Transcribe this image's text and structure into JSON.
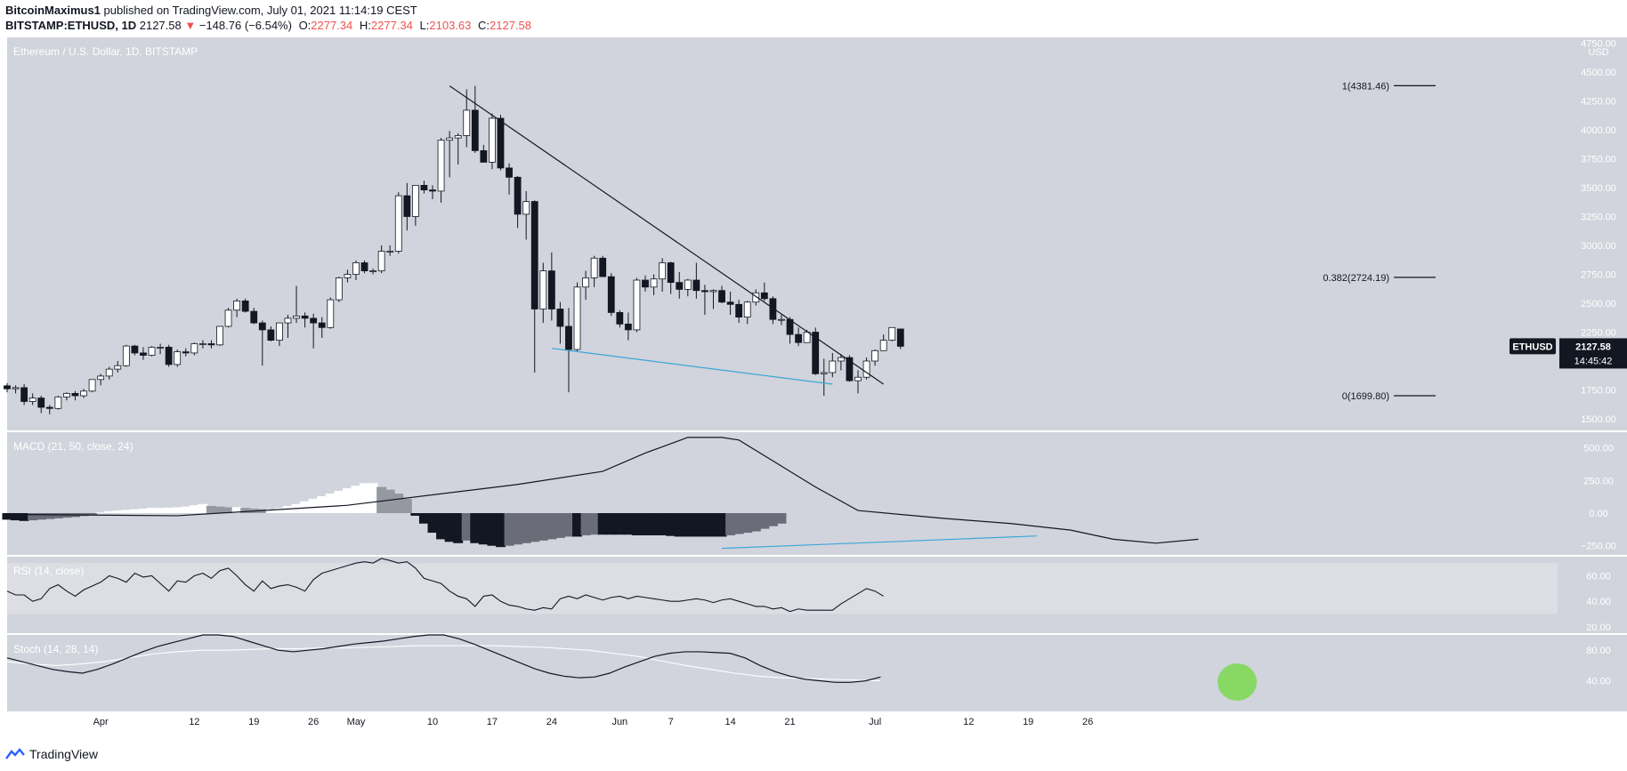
{
  "header": {
    "author": "BitcoinMaximus1",
    "published_text": "published on TradingView.com, July 01, 2021 11:14:19 CEST",
    "symbol": "BITSTAMP:ETHUSD, 1D",
    "last": "2127.58",
    "change": "−148.76 (−6.54%)",
    "o_label": "O:",
    "o": "2277.34",
    "h_label": "H:",
    "h": "2277.34",
    "l_label": "L:",
    "l": "2103.63",
    "c_label": "C:",
    "c": "2127.58"
  },
  "main": {
    "title": "Ethereum / U.S. Dollar, 1D, BITSTAMP",
    "currency": "USD",
    "price_ticks": [
      "4750.00",
      "4500.00",
      "4250.00",
      "4000.00",
      "3750.00",
      "3500.00",
      "3250.00",
      "3000.00",
      "2750.00",
      "2500.00",
      "2250.00",
      "2000.00",
      "1750.00",
      "1500.00"
    ],
    "fib_levels": [
      {
        "label": "1(4381.46)",
        "value": 4381.46
      },
      {
        "label": "0.382(2724.19)",
        "value": 2724.19
      },
      {
        "label": "0(1699.80)",
        "value": 1699.8
      }
    ],
    "price_badge": {
      "symbol": "ETHUSD",
      "price": "2127.58",
      "countdown": "14:45:42"
    }
  },
  "macd": {
    "title": "MACD (21, 50, close, 24)",
    "ticks": [
      "500.00",
      "250.00",
      "0.00",
      "−250.00"
    ]
  },
  "rsi": {
    "title": "RSI (14, close)",
    "ticks": [
      "60.00",
      "40.00",
      "20.00"
    ]
  },
  "stoch": {
    "title": "Stoch (14, 28, 14)",
    "ticks": [
      "80.00",
      "40.00"
    ]
  },
  "x_axis": {
    "ticks": [
      "Apr",
      "12",
      "19",
      "26",
      "May",
      "10",
      "17",
      "24",
      "Jun",
      "7",
      "14",
      "21",
      "Jul",
      "12",
      "19",
      "26"
    ]
  },
  "footer": {
    "brand": "TradingView"
  },
  "colors": {
    "bg": "#d1d4dc",
    "up": "#ffffff",
    "down": "#131722",
    "wick": "#131722",
    "support": "#3ca5d8",
    "highlight": "#7ed957",
    "label_red": "#ef5350"
  },
  "chart_data": [
    {
      "type": "candlestick",
      "title": "Ethereum / U.S. Dollar, 1D, BITSTAMP",
      "x_start": "2021-03-21",
      "x_end": "2021-07-01",
      "ylim": [
        1400,
        4800
      ],
      "ohlc": [
        [
          1786,
          1810,
          1730,
          1760
        ],
        [
          1760,
          1790,
          1720,
          1770
        ],
        [
          1770,
          1800,
          1620,
          1650
        ],
        [
          1650,
          1720,
          1620,
          1680
        ],
        [
          1680,
          1700,
          1550,
          1600
        ],
        [
          1600,
          1620,
          1540,
          1590
        ],
        [
          1590,
          1700,
          1580,
          1690
        ],
        [
          1690,
          1730,
          1660,
          1720
        ],
        [
          1720,
          1740,
          1660,
          1700
        ],
        [
          1700,
          1760,
          1680,
          1740
        ],
        [
          1740,
          1840,
          1730,
          1840
        ],
        [
          1840,
          1890,
          1790,
          1870
        ],
        [
          1870,
          1950,
          1840,
          1930
        ],
        [
          1930,
          2000,
          1900,
          1960
        ],
        [
          1960,
          2140,
          1950,
          2130
        ],
        [
          2130,
          2140,
          2050,
          2070
        ],
        [
          2070,
          2120,
          2010,
          2050
        ],
        [
          2050,
          2130,
          2040,
          2120
        ],
        [
          2120,
          2150,
          2060,
          2120
        ],
        [
          2120,
          2140,
          1950,
          1970
        ],
        [
          1970,
          2100,
          1950,
          2080
        ],
        [
          2080,
          2110,
          2040,
          2070
        ],
        [
          2070,
          2160,
          2050,
          2150
        ],
        [
          2150,
          2180,
          2110,
          2150
        ],
        [
          2150,
          2180,
          2110,
          2140
        ],
        [
          2140,
          2300,
          2130,
          2300
        ],
        [
          2300,
          2460,
          2290,
          2440
        ],
        [
          2440,
          2540,
          2380,
          2520
        ],
        [
          2520,
          2540,
          2420,
          2430
        ],
        [
          2430,
          2460,
          2320,
          2330
        ],
        [
          2330,
          2350,
          1960,
          2270
        ],
        [
          2270,
          2300,
          2170,
          2180
        ],
        [
          2180,
          2310,
          2130,
          2330
        ],
        [
          2330,
          2400,
          2200,
          2370
        ],
        [
          2370,
          2650,
          2330,
          2390
        ],
        [
          2390,
          2420,
          2290,
          2370
        ],
        [
          2370,
          2410,
          2110,
          2330
        ],
        [
          2330,
          2380,
          2200,
          2290
        ],
        [
          2290,
          2550,
          2280,
          2530
        ],
        [
          2530,
          2730,
          2510,
          2720
        ],
        [
          2720,
          2790,
          2680,
          2750
        ],
        [
          2750,
          2870,
          2700,
          2850
        ],
        [
          2850,
          2870,
          2760,
          2780
        ],
        [
          2780,
          2800,
          2750,
          2780
        ],
        [
          2780,
          3000,
          2760,
          2950
        ],
        [
          2950,
          3000,
          2910,
          2950
        ],
        [
          2950,
          3460,
          2930,
          3430
        ],
        [
          3430,
          3540,
          3130,
          3250
        ],
        [
          3250,
          3500,
          3170,
          3520
        ],
        [
          3520,
          3560,
          3450,
          3480
        ],
        [
          3480,
          3520,
          3400,
          3470
        ],
        [
          3470,
          3930,
          3370,
          3910
        ],
        [
          3910,
          3990,
          3590,
          3930
        ],
        [
          3930,
          3970,
          3700,
          3950
        ],
        [
          3950,
          4350,
          3850,
          4170
        ],
        [
          4170,
          4380,
          3800,
          3820
        ],
        [
          3820,
          3870,
          3720,
          3720
        ],
        [
          3720,
          4140,
          3660,
          4100
        ],
        [
          4100,
          4130,
          3650,
          3670
        ],
        [
          3670,
          3710,
          3440,
          3590
        ],
        [
          3590,
          3600,
          3150,
          3270
        ],
        [
          3270,
          3470,
          3050,
          3380
        ],
        [
          3380,
          3390,
          1900,
          2450
        ],
        [
          2450,
          2850,
          2330,
          2780
        ],
        [
          2780,
          2940,
          2350,
          2450
        ],
        [
          2450,
          2510,
          2150,
          2300
        ],
        [
          2300,
          2460,
          1730,
          2100
        ],
        [
          2100,
          2680,
          2080,
          2640
        ],
        [
          2640,
          2780,
          2530,
          2720
        ],
        [
          2720,
          2910,
          2640,
          2890
        ],
        [
          2890,
          2910,
          2730,
          2730
        ],
        [
          2730,
          2760,
          2390,
          2420
        ],
        [
          2420,
          2440,
          2290,
          2320
        ],
        [
          2320,
          2420,
          2180,
          2270
        ],
        [
          2270,
          2720,
          2250,
          2700
        ],
        [
          2700,
          2740,
          2600,
          2640
        ],
        [
          2640,
          2750,
          2570,
          2710
        ],
        [
          2710,
          2890,
          2600,
          2850
        ],
        [
          2850,
          2860,
          2580,
          2680
        ],
        [
          2680,
          2770,
          2540,
          2620
        ],
        [
          2620,
          2710,
          2560,
          2700
        ],
        [
          2700,
          2850,
          2540,
          2610
        ],
        [
          2610,
          2660,
          2400,
          2600
        ],
        [
          2600,
          2620,
          2450,
          2610
        ],
        [
          2610,
          2650,
          2500,
          2510
        ],
        [
          2510,
          2600,
          2400,
          2490
        ],
        [
          2490,
          2530,
          2330,
          2380
        ],
        [
          2380,
          2520,
          2320,
          2510
        ],
        [
          2510,
          2620,
          2480,
          2590
        ],
        [
          2590,
          2680,
          2520,
          2540
        ],
        [
          2540,
          2560,
          2320,
          2360
        ],
        [
          2360,
          2400,
          2310,
          2360
        ],
        [
          2360,
          2380,
          2150,
          2230
        ],
        [
          2230,
          2290,
          2130,
          2160
        ],
        [
          2160,
          2270,
          2160,
          2250
        ],
        [
          2250,
          2290,
          1880,
          1890
        ],
        [
          1890,
          2020,
          1700,
          1900
        ],
        [
          1900,
          2070,
          1860,
          2000
        ],
        [
          2000,
          2060,
          1920,
          2030
        ],
        [
          2030,
          2050,
          1820,
          1830
        ],
        [
          1830,
          1920,
          1720,
          1860
        ],
        [
          1860,
          2030,
          1840,
          2000
        ],
        [
          2000,
          2100,
          1960,
          2090
        ],
        [
          2090,
          2230,
          2090,
          2180
        ],
        [
          2180,
          2290,
          2170,
          2290
        ],
        [
          2277.34,
          2277.34,
          2103.63,
          2127.58
        ]
      ],
      "trendline": [
        [
          "2021-05-12",
          4380
        ],
        [
          "2021-07-02",
          1800
        ]
      ],
      "support_line": [
        [
          "2021-05-24",
          2110
        ],
        [
          "2021-06-26",
          1800
        ]
      ]
    },
    {
      "type": "bar",
      "title": "MACD (21, 50, close, 24)",
      "ylim": [
        -320,
        620
      ],
      "macd_line": [
        [
          0,
          -10
        ],
        [
          20,
          -20
        ],
        [
          40,
          60
        ],
        [
          55,
          180
        ],
        [
          60,
          220
        ],
        [
          70,
          320
        ],
        [
          75,
          460
        ],
        [
          80,
          580
        ],
        [
          84,
          580
        ],
        [
          86,
          560
        ],
        [
          90,
          400
        ],
        [
          95,
          200
        ],
        [
          100,
          20
        ],
        [
          110,
          -40
        ],
        [
          118,
          -80
        ],
        [
          125,
          -130
        ],
        [
          130,
          -200
        ],
        [
          135,
          -230
        ],
        [
          140,
          -200
        ]
      ],
      "histogram": [
        -50,
        -55,
        -60,
        -55,
        -50,
        -45,
        -40,
        -35,
        -30,
        -22,
        -10,
        5,
        15,
        20,
        25,
        30,
        35,
        40,
        40,
        42,
        45,
        50,
        60,
        70,
        55,
        50,
        45,
        45,
        40,
        35,
        30,
        30,
        40,
        55,
        70,
        90,
        110,
        130,
        150,
        170,
        190,
        210,
        230,
        230,
        200,
        180,
        150,
        110,
        -20,
        -80,
        -150,
        -200,
        -220,
        -230,
        -210,
        -230,
        -240,
        -250,
        -260,
        -250,
        -240,
        -230,
        -220,
        -210,
        -200,
        -190,
        -180,
        -180,
        -170,
        -165,
        -165,
        -165,
        -165,
        -165,
        -170,
        -170,
        -170,
        -170,
        -175,
        -180,
        -180,
        -180,
        -180,
        -180,
        -180,
        -170,
        -160,
        -150,
        -140,
        -120,
        -100,
        -80
      ]
    },
    {
      "type": "line",
      "title": "RSI (14, close)",
      "ylim": [
        15,
        75
      ],
      "values": [
        48,
        45,
        45,
        40,
        42,
        50,
        53,
        48,
        44,
        49,
        52,
        55,
        60,
        58,
        55,
        62,
        59,
        60,
        54,
        48,
        56,
        55,
        60,
        62,
        58,
        64,
        66,
        60,
        53,
        48,
        56,
        50,
        52,
        53,
        51,
        48,
        57,
        62,
        64,
        66,
        68,
        70,
        71,
        70,
        74,
        72,
        70,
        71,
        66,
        58,
        56,
        54,
        48,
        44,
        42,
        36,
        44,
        45,
        40,
        37,
        36,
        34,
        33,
        35,
        34,
        42,
        44,
        42,
        45,
        43,
        41,
        43,
        44,
        42,
        44,
        43,
        42,
        41,
        40,
        40,
        41,
        42,
        41,
        39,
        41,
        42,
        40,
        38,
        36,
        36,
        34,
        35,
        32,
        34,
        33,
        33,
        33,
        33,
        38,
        42,
        46,
        50,
        48,
        44
      ]
    },
    {
      "type": "line",
      "title": "Stoch (14, 28, 14)",
      "ylim": [
        0,
        100
      ],
      "k": [
        70,
        65,
        60,
        55,
        52,
        50,
        55,
        62,
        70,
        78,
        85,
        90,
        95,
        100,
        100,
        98,
        92,
        86,
        80,
        78,
        80,
        82,
        85,
        88,
        90,
        92,
        95,
        98,
        100,
        100,
        95,
        88,
        80,
        72,
        64,
        56,
        50,
        46,
        44,
        45,
        50,
        58,
        65,
        72,
        76,
        78,
        78,
        77,
        76,
        70,
        60,
        52,
        46,
        42,
        40,
        38,
        38,
        40,
        45
      ],
      "d": [
        65,
        62,
        60,
        62,
        65,
        70,
        75,
        78,
        80,
        80,
        81,
        82,
        82,
        83,
        83,
        84,
        85,
        86,
        86,
        86,
        86,
        85,
        84,
        82,
        80,
        76,
        72,
        66,
        60,
        55,
        50,
        46,
        44,
        43,
        42,
        41,
        40
      ]
    }
  ]
}
